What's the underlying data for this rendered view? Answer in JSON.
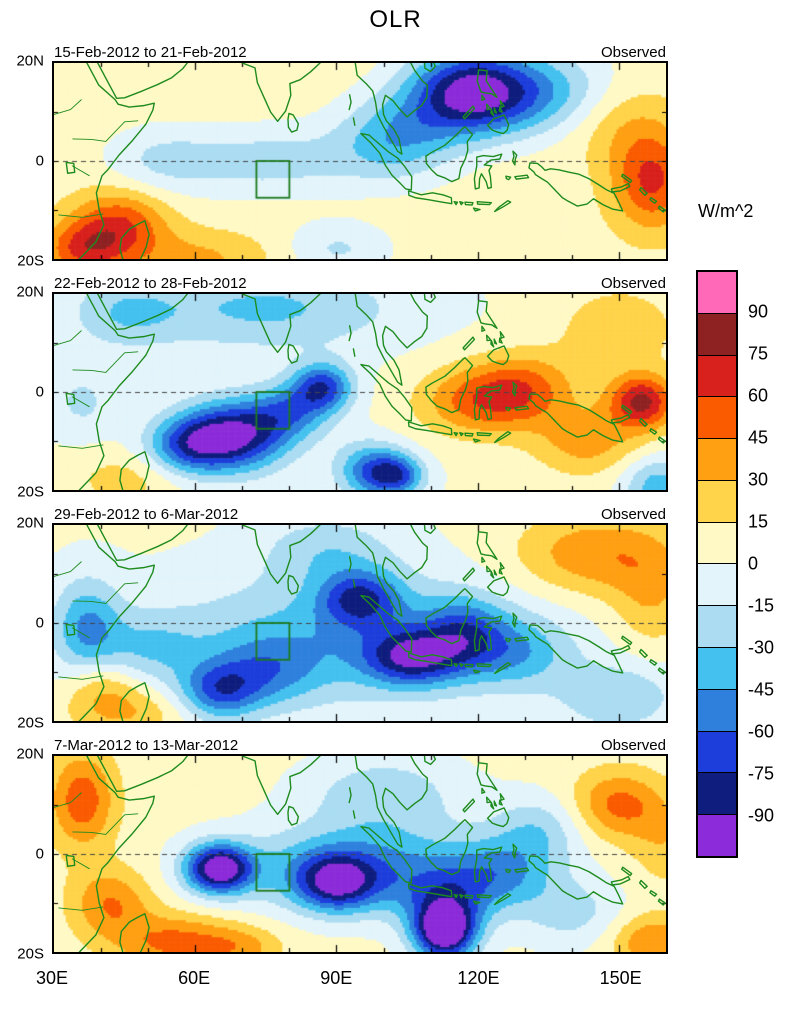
{
  "title": "OLR",
  "colorbar": {
    "title": "W/m^2",
    "tick_labels": [
      "90",
      "75",
      "60",
      "45",
      "30",
      "15",
      "0",
      "-15",
      "-30",
      "-45",
      "-60",
      "-75",
      "-90"
    ],
    "band_colors_top_to_bottom": [
      "#FF69B8",
      "#8E2222",
      "#D8201C",
      "#FA5B00",
      "#FFA013",
      "#FFD34A",
      "#FFF9C6",
      "#E3F4FB",
      "#ABDCF2",
      "#45C1EF",
      "#2F80DD",
      "#1D3EDB",
      "#0F1D7E",
      "#8C2BD9"
    ]
  },
  "x_axis": {
    "tick_labels": [
      "30E",
      "60E",
      "90E",
      "120E",
      "150E"
    ],
    "tick_lons": [
      30,
      60,
      90,
      120,
      150
    ]
  },
  "y_axis": {
    "tick_labels": [
      "20N",
      "0",
      "20S"
    ]
  },
  "colors": {
    "coastline": "#1E8B1E",
    "study_box": "#1C7A1C",
    "equator_line": "#444444"
  },
  "chart_data": {
    "type": "heatmap",
    "title": "OLR",
    "units": "W/m^2",
    "domain": {
      "lon_min": 30,
      "lon_max": 160,
      "lat_min": -20,
      "lat_max": 20
    },
    "levels": [
      -90,
      -75,
      -60,
      -45,
      -30,
      -15,
      0,
      15,
      30,
      45,
      60,
      75,
      90
    ],
    "study_region_box": {
      "lon_min": 73,
      "lon_max": 80,
      "lat_min": -7.5,
      "lat_max": 0
    },
    "panels": [
      {
        "date_range": "15-Feb-2012 to 21-Feb-2012",
        "source": "Observed",
        "base": 8,
        "blobs": [
          [
            118,
            14,
            -95,
            9,
            6
          ],
          [
            133,
            14,
            -45,
            11,
            6
          ],
          [
            103,
            5,
            -45,
            9,
            6
          ],
          [
            75,
            0,
            -30,
            16,
            5
          ],
          [
            52,
            0,
            -18,
            8,
            5
          ],
          [
            90,
            -18,
            -25,
            8,
            4
          ],
          [
            44,
            -13,
            50,
            7,
            5
          ],
          [
            36,
            -18,
            45,
            6,
            4
          ],
          [
            60,
            -20,
            25,
            12,
            4
          ],
          [
            157,
            -4,
            55,
            6,
            7
          ],
          [
            150,
            8,
            20,
            8,
            6
          ]
        ]
      },
      {
        "date_range": "22-Feb-2012 to 28-Feb-2012",
        "source": "Observed",
        "base": 2,
        "blobs": [
          [
            68,
            -9,
            -95,
            8,
            5
          ],
          [
            58,
            -11,
            -50,
            6,
            4
          ],
          [
            80,
            -4,
            -45,
            6,
            4
          ],
          [
            87,
            1,
            -70,
            4.5,
            3.5
          ],
          [
            97,
            -16,
            -55,
            5,
            4
          ],
          [
            103,
            -17,
            -60,
            4,
            3
          ],
          [
            75,
            17,
            -35,
            20,
            6
          ],
          [
            45,
            16,
            -25,
            8,
            5
          ],
          [
            36,
            -2,
            -20,
            5,
            5
          ],
          [
            120,
            -2,
            45,
            9,
            5
          ],
          [
            130,
            1,
            40,
            8,
            5
          ],
          [
            155,
            -2,
            75,
            5,
            4
          ],
          [
            143,
            -10,
            35,
            8,
            5
          ],
          [
            150,
            13,
            25,
            9,
            6
          ],
          [
            158,
            -19,
            -40,
            5,
            4
          ],
          [
            45,
            -18,
            20,
            8,
            4
          ]
        ]
      },
      {
        "date_range": "29-Feb-2012 to 6-Mar-2012",
        "source": "Observed",
        "base": 2,
        "blobs": [
          [
            92,
            -3,
            -40,
            26,
            9
          ],
          [
            95,
            5,
            -60,
            6,
            4
          ],
          [
            106,
            -7,
            -70,
            7,
            4
          ],
          [
            117,
            -2,
            -45,
            6,
            5
          ],
          [
            128,
            -6,
            -35,
            8,
            5
          ],
          [
            65,
            -14,
            -55,
            6,
            4
          ],
          [
            75,
            -10,
            -35,
            8,
            5
          ],
          [
            37,
            -1,
            -45,
            5,
            7
          ],
          [
            50,
            -5,
            -25,
            8,
            5
          ],
          [
            88,
            15,
            -25,
            10,
            5
          ],
          [
            150,
            -15,
            -30,
            9,
            5
          ],
          [
            145,
            14,
            40,
            12,
            6
          ],
          [
            157,
            5,
            25,
            6,
            8
          ],
          [
            45,
            -18,
            30,
            9,
            4
          ],
          [
            40,
            -12,
            25,
            5,
            4
          ]
        ]
      },
      {
        "date_range": "7-Mar-2012 to 13-Mar-2012",
        "source": "Observed",
        "base": 5,
        "blobs": [
          [
            95,
            -3,
            -55,
            18,
            6
          ],
          [
            65,
            -3,
            -105,
            5,
            3.5
          ],
          [
            90,
            -6,
            -70,
            6,
            4
          ],
          [
            113,
            -16,
            -110,
            4.5,
            4
          ],
          [
            113,
            -10,
            -45,
            7,
            5
          ],
          [
            125,
            -4,
            -40,
            8,
            5
          ],
          [
            100,
            12,
            -30,
            12,
            6
          ],
          [
            133,
            5,
            -30,
            7,
            5
          ],
          [
            140,
            -12,
            -25,
            8,
            5
          ],
          [
            150,
            10,
            45,
            7,
            5
          ],
          [
            157,
            -18,
            40,
            6,
            4
          ],
          [
            36,
            11,
            50,
            5,
            7
          ],
          [
            42,
            -10,
            40,
            6,
            5
          ],
          [
            56,
            -18,
            45,
            9,
            4
          ],
          [
            70,
            -19,
            25,
            6,
            3
          ],
          [
            160,
            2,
            20,
            5,
            6
          ]
        ]
      }
    ]
  }
}
